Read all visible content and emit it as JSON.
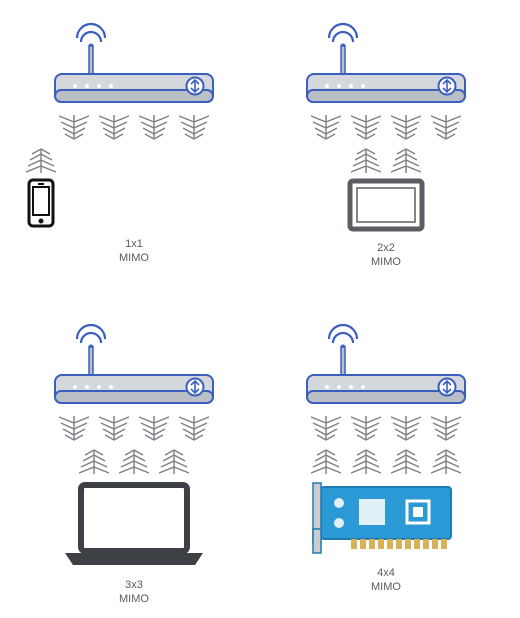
{
  "panels": [
    {
      "id": "p1",
      "label_line1": "1x1",
      "label_line2": "MIMO",
      "client_streams": 1,
      "device": "phone"
    },
    {
      "id": "p2",
      "label_line1": "2x2",
      "label_line2": "MIMO",
      "client_streams": 2,
      "device": "tablet"
    },
    {
      "id": "p3",
      "label_line1": "3x3",
      "label_line2": "MIMO",
      "client_streams": 3,
      "device": "laptop"
    },
    {
      "id": "p4",
      "label_line1": "4x4",
      "label_line2": "MIMO",
      "client_streams": 4,
      "device": "card"
    }
  ],
  "colors": {
    "router_body": "#d4d8dd",
    "router_body_dark": "#b9bfc5",
    "router_outline": "#3b5fbf",
    "router_button": "#3b5fbf",
    "signal_stroke": "#7a7f85",
    "phone_stroke": "#111111",
    "tablet_stroke": "#5a5e63",
    "laptop_stroke": "#3d4045",
    "card_fill": "#2a99d6",
    "card_stroke": "#1e7bb0",
    "text": "#5a5a5a"
  },
  "router": {
    "antennas_down": 4
  },
  "sizes": {
    "router_w": 160,
    "router_h": 100,
    "signal_w": 30,
    "signal_h": 28
  }
}
